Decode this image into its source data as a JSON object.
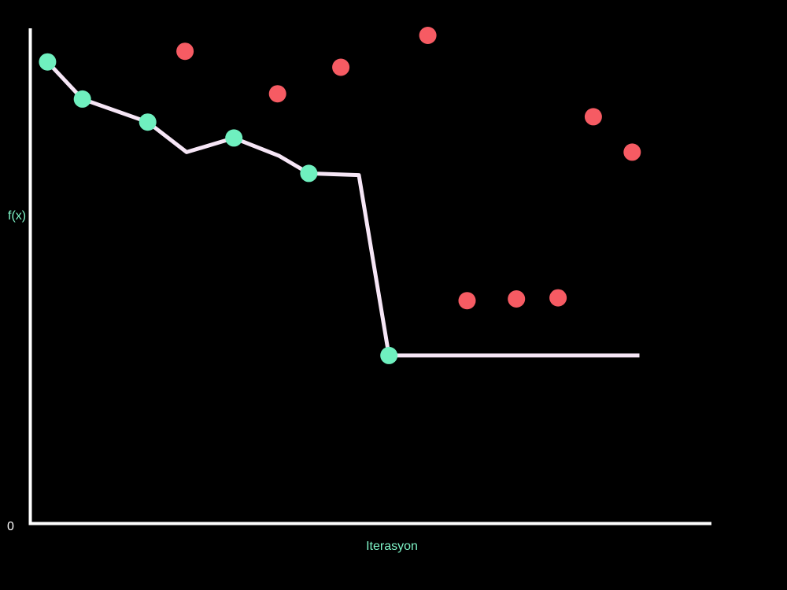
{
  "colors": {
    "background": "#000000",
    "axis": "#ffffff",
    "best_line": "#f6e6f6",
    "accepted_point": "#6ff0bf",
    "rejected_point": "#f65b63",
    "label_text": "#7ff5c8",
    "origin_text": "#ffffff"
  },
  "chart_data": {
    "type": "scatter",
    "title": "",
    "xlabel": "Iterasyon",
    "ylabel": "f(x)",
    "origin_label": "0",
    "xlim": [
      0,
      17
    ],
    "ylim": [
      0,
      14
    ],
    "grid": false,
    "legend": "none",
    "series": [
      {
        "points": [
          [
            0.43,
            13.05
          ],
          [
            1.3,
            12.0
          ],
          [
            2.93,
            11.35
          ],
          [
            5.08,
            10.9
          ],
          [
            6.95,
            9.9
          ],
          [
            8.95,
            4.75
          ]
        ]
      },
      {
        "points": [
          [
            3.9,
            10.5
          ],
          [
            6.2,
            10.4
          ],
          [
            8.2,
            9.85
          ]
        ]
      },
      {
        "points": [
          [
            3.86,
            13.35
          ],
          [
            6.17,
            12.15
          ],
          [
            7.75,
            12.9
          ],
          [
            9.92,
            13.8
          ],
          [
            10.9,
            6.3
          ],
          [
            12.13,
            6.35
          ],
          [
            13.17,
            6.38
          ],
          [
            14.05,
            11.5
          ],
          [
            15.02,
            10.5
          ]
        ]
      }
    ],
    "best_line_end_x": 15.2
  }
}
